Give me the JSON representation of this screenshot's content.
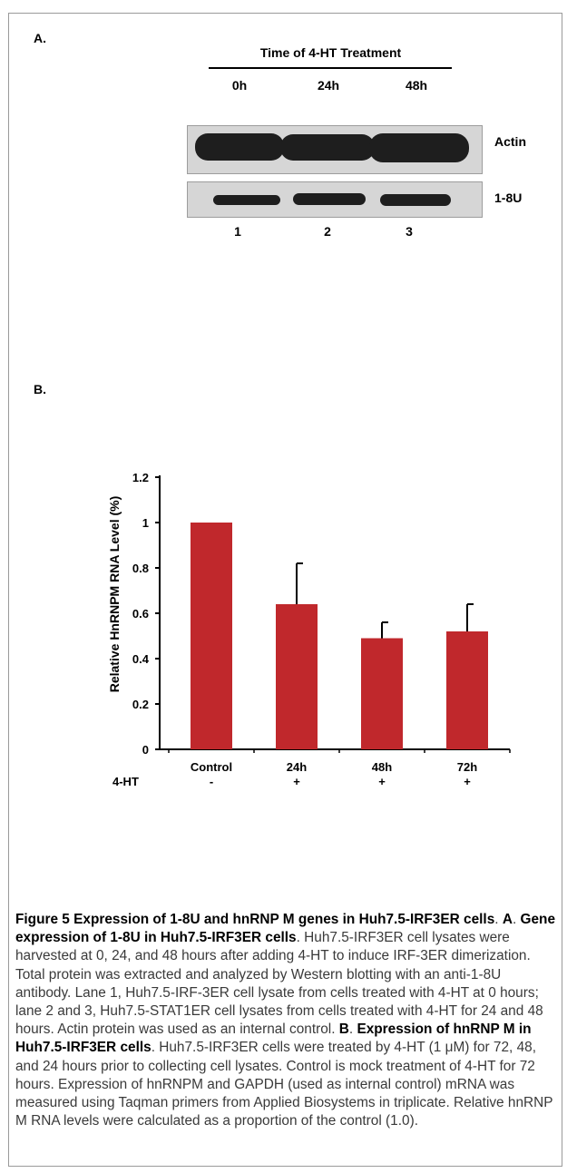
{
  "panel_a": {
    "label": "A.",
    "blot_title": "Time of 4-HT Treatment",
    "time_points": [
      "0h",
      "24h",
      "48h"
    ],
    "rows": [
      "Actin",
      "1-8U"
    ],
    "lanes": [
      "1",
      "2",
      "3"
    ]
  },
  "panel_b": {
    "label": "B."
  },
  "chart_data": {
    "type": "bar",
    "categories": [
      "Control",
      "24h",
      "48h",
      "72h"
    ],
    "treatment_label": "4-HT",
    "treatment_marks": [
      "-",
      "+",
      "+",
      "+"
    ],
    "values": [
      1.0,
      0.64,
      0.49,
      0.52
    ],
    "errors": [
      0,
      0.18,
      0.07,
      0.12
    ],
    "ylabel": "Relative HnRNPM RNA Level (%)",
    "xlabel": "",
    "title": "",
    "ylim": [
      0,
      1.2
    ],
    "yticks": [
      "0",
      "0.2",
      "0.4",
      "0.6",
      "0.8",
      "1",
      "1.2"
    ],
    "bar_color": "#c0282c",
    "grid": false
  },
  "caption": {
    "fig_label": "Figure 5",
    "fig_title": "Expression of 1-8U and hnRNP M genes in Huh7.5-IRF3ER cells",
    "a_label": "A",
    "a_title": "Gene expression of 1-8U in Huh7.5-IRF3ER cells",
    "a_text": "Huh7.5-IRF3ER cell lysates were harvested at 0, 24, and 48 hours after adding 4-HT to induce IRF-3ER dimerization. Total protein was extracted and analyzed by Western blotting with an anti-1-8U antibody. Lane 1, Huh7.5-IRF-3ER cell lysate from cells treated with 4-HT at 0 hours; lane 2 and 3, Huh7.5-STAT1ER cell lysates from cells treated with 4-HT for 24 and 48 hours. Actin protein was used as an internal control.",
    "b_label": "B",
    "b_title": "Expression of hnRNP M in Huh7.5-IRF3ER cells",
    "b_text": "Huh7.5-IRF3ER cells were treated by 4-HT (1 μM) for 72, 48, and 24 hours prior to collecting cell lysates. Control is mock treatment of 4-HT for 72 hours. Expression of hnRNPM and GAPDH (used as internal control) mRNA was measured using Taqman primers from Applied Biosystems in triplicate. Relative hnRNP M RNA levels were calculated as a proportion of the control (1.0)."
  }
}
